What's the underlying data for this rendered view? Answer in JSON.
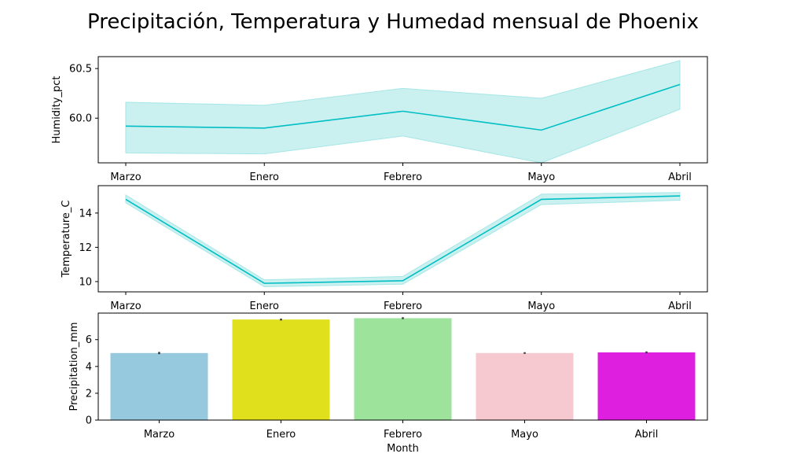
{
  "figure": {
    "title": "Precipitación, Temperatura y Humedad mensual de Phoenix"
  },
  "chart_data": [
    {
      "type": "line",
      "categories": [
        "Marzo",
        "Enero",
        "Febrero",
        "Mayo",
        "Abril"
      ],
      "values": [
        59.92,
        59.9,
        60.07,
        59.88,
        60.34
      ],
      "ci_low": [
        59.65,
        59.64,
        59.82,
        59.55,
        60.09
      ],
      "ci_high": [
        60.16,
        60.13,
        60.3,
        60.2,
        60.58
      ],
      "ylabel": "Humidity_pct",
      "xlabel": "",
      "ylim": [
        59.55,
        60.62
      ],
      "yticks": [
        60.0,
        60.5
      ],
      "ytick_labels": [
        "60.0",
        "60.5"
      ],
      "line_color": "#00bfc4",
      "band_color": "#a6e6e6"
    },
    {
      "type": "line",
      "categories": [
        "Marzo",
        "Enero",
        "Febrero",
        "Mayo",
        "Abril"
      ],
      "values": [
        14.8,
        9.9,
        10.05,
        14.8,
        15.0
      ],
      "ci_low": [
        14.6,
        9.7,
        9.85,
        14.5,
        14.75
      ],
      "ci_high": [
        15.05,
        10.1,
        10.3,
        15.1,
        15.2
      ],
      "ylabel": "Temperature_C",
      "xlabel": "",
      "ylim": [
        9.4,
        15.6
      ],
      "yticks": [
        10,
        12,
        14
      ],
      "ytick_labels": [
        "10",
        "12",
        "14"
      ],
      "line_color": "#00bfc4",
      "band_color": "#a6e6e6"
    },
    {
      "type": "bar",
      "categories": [
        "Marzo",
        "Enero",
        "Febrero",
        "Mayo",
        "Abril"
      ],
      "values": [
        5.0,
        7.5,
        7.6,
        5.0,
        5.05
      ],
      "err_low": [
        4.92,
        7.43,
        7.53,
        4.94,
        4.98
      ],
      "err_high": [
        5.08,
        7.57,
        7.67,
        5.06,
        5.12
      ],
      "colors": [
        "#96c9de",
        "#e0e01c",
        "#9de39c",
        "#f6c8d0",
        "#df1fdf"
      ],
      "ylabel": "Precipitation_mm",
      "xlabel": "Month",
      "ylim": [
        0,
        7.98
      ],
      "yticks": [
        0,
        2,
        4,
        6
      ],
      "ytick_labels": [
        "0",
        "2",
        "4",
        "6"
      ]
    }
  ]
}
